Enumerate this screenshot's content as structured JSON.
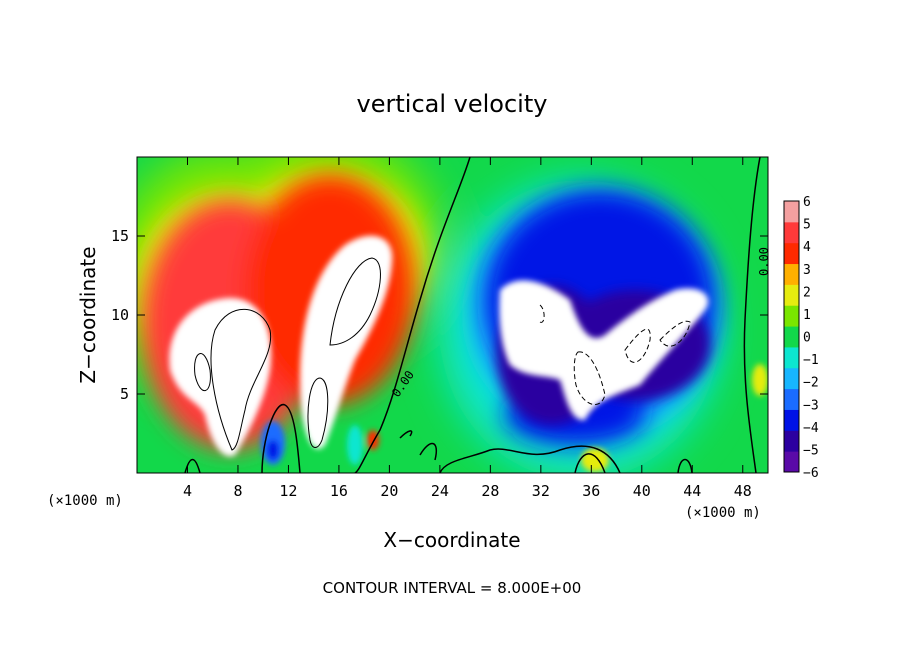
{
  "chart_data": {
    "type": "heatmap",
    "title": "vertical velocity",
    "xlabel": "X−coordinate",
    "ylabel": "Z−coordinate",
    "x_unit_left": "(×1000 m)",
    "x_unit_right": "(×1000 m)",
    "footer": "CONTOUR INTERVAL = 8.000E+00",
    "xlim": [
      0,
      50
    ],
    "ylim": [
      0,
      20
    ],
    "x_ticks": [
      4,
      8,
      12,
      16,
      20,
      24,
      28,
      32,
      36,
      40,
      44,
      48
    ],
    "y_ticks": [
      5,
      10,
      15
    ],
    "zero_contour_labels": [
      "0.00",
      "0.00"
    ],
    "colorbar": {
      "min": -6,
      "max": 6,
      "tick_labels": [
        "6",
        "5",
        "4",
        "3",
        "2",
        "1",
        "0",
        "−1",
        "−2",
        "−3",
        "−4",
        "−5",
        "−6"
      ],
      "colors": [
        "#5a0aa8",
        "#2c00a0",
        "#0012e6",
        "#1a6cff",
        "#17b6ff",
        "#0ce6d0",
        "#12d84a",
        "#7ae600",
        "#e6ec10",
        "#ffb000",
        "#ff2a00",
        "#ff3a3a",
        "#f4a0a0"
      ]
    }
  }
}
